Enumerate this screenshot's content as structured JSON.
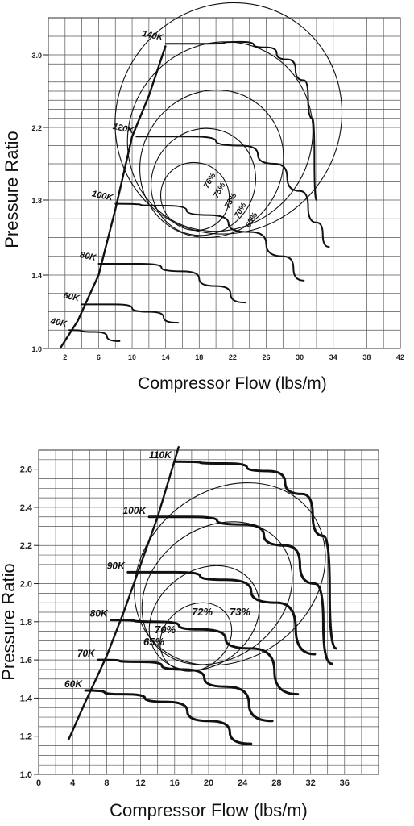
{
  "chart_data": [
    {
      "type": "line",
      "subtype": "compressor-map",
      "xlabel": "Compressor Flow (lbs/m)",
      "ylabel": "Pressure Ratio",
      "xlim": [
        0,
        42
      ],
      "ylim": [
        1.0,
        3.2
      ],
      "x_ticks": [
        2,
        6,
        10,
        14,
        18,
        22,
        26,
        30,
        34,
        38,
        42
      ],
      "y_ticks": [
        1.0,
        1.4,
        1.8,
        2.2,
        3.0
      ],
      "grid": true,
      "surge_line": {
        "x": [
          1.4,
          3.5,
          6.0,
          8.0,
          10.0,
          12.0,
          14.0
        ],
        "y": [
          1.0,
          1.15,
          1.4,
          1.75,
          2.15,
          2.55,
          3.05
        ]
      },
      "speed_lines": [
        {
          "name": "40K",
          "x": [
            2.5,
            5.5,
            8.5
          ],
          "y": [
            1.1,
            1.09,
            1.04
          ]
        },
        {
          "name": "60K",
          "x": [
            4.0,
            8.0,
            12.0,
            15.5
          ],
          "y": [
            1.24,
            1.24,
            1.2,
            1.14
          ]
        },
        {
          "name": "80K",
          "x": [
            6.0,
            11.0,
            16.0,
            20.0,
            23.5
          ],
          "y": [
            1.46,
            1.46,
            1.42,
            1.34,
            1.25
          ]
        },
        {
          "name": "100K",
          "x": [
            8.0,
            14.0,
            19.0,
            24.0,
            28.0,
            30.5
          ],
          "y": [
            1.78,
            1.77,
            1.72,
            1.63,
            1.5,
            1.37
          ]
        },
        {
          "name": "120K",
          "x": [
            10.5,
            17.0,
            23.0,
            27.0,
            30.0,
            32.0,
            33.5
          ],
          "y": [
            2.15,
            2.15,
            2.1,
            2.0,
            1.85,
            1.68,
            1.55
          ]
        },
        {
          "name": "140K",
          "x": [
            14.0,
            19.0,
            23.0,
            26.0,
            28.5,
            30.5,
            31.5,
            32.0
          ],
          "y": [
            3.06,
            3.06,
            3.07,
            3.04,
            2.95,
            2.72,
            2.3,
            1.8
          ]
        }
      ],
      "efficiency_islands": [
        {
          "name": "76%",
          "cx": 17.5,
          "cy": 1.82,
          "rx": 4.0,
          "ry": 0.42
        },
        {
          "name": "75%",
          "cx": 18.5,
          "cy": 1.9,
          "rx": 6.5,
          "ry": 0.62
        },
        {
          "name": "73%",
          "cx": 19.5,
          "cy": 2.0,
          "rx": 9.0,
          "ry": 0.85
        },
        {
          "name": "70%",
          "cx": 20.5,
          "cy": 2.15,
          "rx": 11.5,
          "ry": 1.1
        },
        {
          "name": "65%",
          "cx": 21.5,
          "cy": 2.3,
          "rx": 14.0,
          "ry": 1.35
        }
      ]
    },
    {
      "type": "line",
      "subtype": "compressor-map",
      "xlabel": "Compressor Flow (lbs/m)",
      "ylabel": "Pressure Ratio",
      "xlim": [
        0,
        40
      ],
      "ylim": [
        1.0,
        2.7
      ],
      "x_ticks": [
        0,
        4,
        8,
        12,
        16,
        20,
        24,
        28,
        32,
        36
      ],
      "y_ticks": [
        1.0,
        1.2,
        1.4,
        1.6,
        1.8,
        2.0,
        2.2,
        2.4,
        2.6
      ],
      "grid": true,
      "surge_line": {
        "x": [
          3.5,
          5.5,
          8.0,
          10.0,
          12.0,
          14.0,
          16.5
        ],
        "y": [
          1.18,
          1.38,
          1.62,
          1.85,
          2.1,
          2.35,
          2.72
        ]
      },
      "speed_lines": [
        {
          "name": "60K",
          "x": [
            5.5,
            10.0,
            15.0,
            20.0,
            25.0
          ],
          "y": [
            1.44,
            1.42,
            1.38,
            1.28,
            1.16
          ]
        },
        {
          "name": "70K",
          "x": [
            7.0,
            12.0,
            17.0,
            22.0,
            27.5
          ],
          "y": [
            1.6,
            1.59,
            1.55,
            1.46,
            1.28
          ]
        },
        {
          "name": "80K",
          "x": [
            8.5,
            14.0,
            19.0,
            25.0,
            30.5
          ],
          "y": [
            1.81,
            1.8,
            1.76,
            1.66,
            1.42
          ]
        },
        {
          "name": "90K",
          "x": [
            10.5,
            16.0,
            22.0,
            28.0,
            32.5
          ],
          "y": [
            2.06,
            2.06,
            2.02,
            1.9,
            1.63
          ]
        },
        {
          "name": "100K",
          "x": [
            13.0,
            18.0,
            24.0,
            29.0,
            32.5,
            34.5
          ],
          "y": [
            2.35,
            2.35,
            2.31,
            2.2,
            2.0,
            1.58
          ]
        },
        {
          "name": "110K",
          "x": [
            16.0,
            22.0,
            27.0,
            31.0,
            33.5,
            35.0
          ],
          "y": [
            2.64,
            2.63,
            2.59,
            2.47,
            2.25,
            1.66
          ]
        }
      ],
      "efficiency_islands": [
        {
          "name": "73%",
          "cx": 18.5,
          "cy": 1.72,
          "rx": 4.5,
          "ry": 0.3
        },
        {
          "name": "72%",
          "cx": 19.5,
          "cy": 1.82,
          "rx": 7.0,
          "ry": 0.45
        },
        {
          "name": "70%",
          "cx": 21.0,
          "cy": 1.95,
          "rx": 9.5,
          "ry": 0.62
        },
        {
          "name": "65%",
          "cx": 22.5,
          "cy": 2.05,
          "rx": 12.0,
          "ry": 0.8
        }
      ]
    }
  ]
}
